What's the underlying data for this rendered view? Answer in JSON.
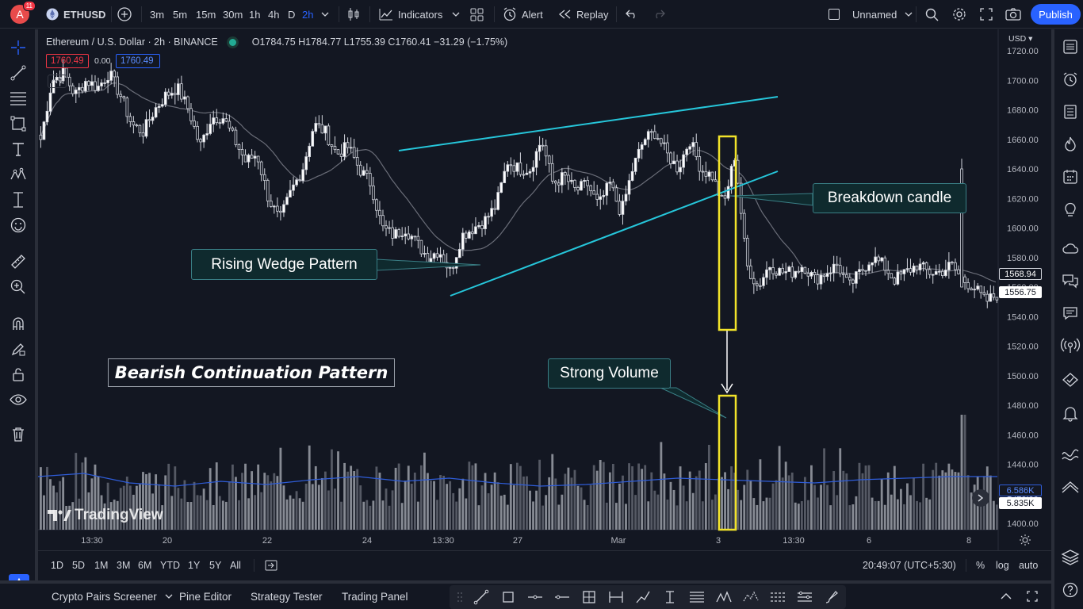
{
  "topbar": {
    "avatar_letter": "A",
    "notifications": "11",
    "symbol": "ETHUSD",
    "intervals": [
      "3m",
      "5m",
      "15m",
      "30m",
      "1h",
      "4h",
      "D",
      "2h"
    ],
    "active_interval": "2h",
    "indicators_label": "Indicators",
    "alert_label": "Alert",
    "replay_label": "Replay",
    "layout_name": "Unnamed",
    "publish_label": "Publish"
  },
  "legend": {
    "title": "Ethereum / U.S. Dollar · 2h · BINANCE",
    "ohlc": "O1784.75 H1784.77 L1755.39 C1760.41 −31.29 (−1.75%)",
    "bid": "1760.49",
    "spread": "0.00",
    "ask": "1760.49",
    "collapse": "2"
  },
  "axis": {
    "currency": "USD",
    "price_ticks": [
      "1720.00",
      "1700.00",
      "1680.00",
      "1660.00",
      "1640.00",
      "1620.00",
      "1600.00",
      "1580.00",
      "1560.00",
      "1540.00",
      "1520.00",
      "1500.00",
      "1480.00",
      "1460.00",
      "1440.00",
      "1420.00",
      "1400.00"
    ],
    "time_ticks": [
      "13:30",
      "20",
      "22",
      "24",
      "13:30",
      "27",
      "Mar",
      "3",
      "13:30",
      "6",
      "8"
    ],
    "price_tag_1": "1568.94",
    "price_tag_2": "1556.75",
    "volume_tag_1": "6.586K",
    "volume_tag_2": "5.835K"
  },
  "annotations": {
    "rising_wedge": "Rising  Wedge  Pattern",
    "breakdown": "Breakdown candle",
    "strong_volume": "Strong Volume",
    "bearish": "Bearish Continuation Pattern"
  },
  "watermark": "TradingView",
  "rangebar": {
    "ranges": [
      "1D",
      "5D",
      "1M",
      "3M",
      "6M",
      "YTD",
      "1Y",
      "5Y",
      "All"
    ],
    "clock": "20:49:07 (UTC+5:30)",
    "pct": "%",
    "log": "log",
    "auto": "auto"
  },
  "bottom_tabs": [
    "Crypto Pairs Screener",
    "Pine Editor",
    "Strategy Tester",
    "Trading Panel"
  ],
  "colors": {
    "background": "#131722",
    "bull": "#ffffff",
    "bear": "#ffffff",
    "trendline": "#26c6da",
    "highlight": "#f2e32a",
    "accent": "#2962ff",
    "ma": "#6a6d78",
    "volume_ma": "#2f5dd9"
  },
  "chart_data": {
    "type": "candlestick",
    "symbol": "ETHUSD",
    "interval": "2h",
    "exchange": "BINANCE",
    "ylim": [
      1400,
      1725
    ],
    "close_path": [
      1660,
      1700,
      1705,
      1690,
      1700,
      1695,
      1705,
      1690,
      1670,
      1665,
      1680,
      1690,
      1695,
      1680,
      1655,
      1675,
      1675,
      1660,
      1645,
      1650,
      1620,
      1605,
      1625,
      1640,
      1670,
      1665,
      1650,
      1655,
      1640,
      1630,
      1600,
      1595,
      1600,
      1590,
      1580,
      1585,
      1570,
      1595,
      1600,
      1605,
      1615,
      1645,
      1640,
      1640,
      1660,
      1630,
      1635,
      1625,
      1630,
      1615,
      1630,
      1610,
      1640,
      1660,
      1665,
      1650,
      1640,
      1660,
      1640,
      1635,
      1615,
      1650,
      1575,
      1560,
      1575,
      1570,
      1570,
      1575,
      1565,
      1570,
      1575,
      1560,
      1570,
      1580,
      1575,
      1565,
      1570,
      1575,
      1570,
      1570,
      1575,
      1565,
      1560,
      1550,
      1555
    ],
    "volume_ma": [
      6.6,
      6.8,
      6.2,
      6.0,
      6.3,
      6.1,
      6.4,
      6.6,
      6.3,
      6.5,
      6.2,
      6.0,
      6.1,
      6.3,
      6.5,
      6.4,
      6.3,
      6.2,
      6.4,
      6.5,
      6.6,
      6.6
    ]
  }
}
